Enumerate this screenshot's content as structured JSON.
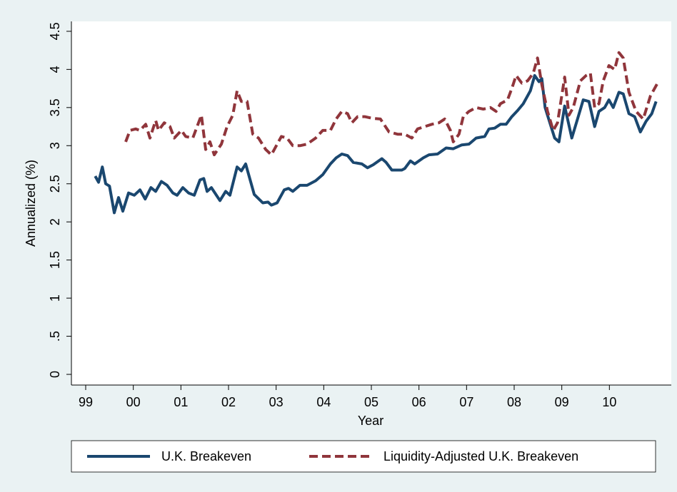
{
  "chart_data": {
    "type": "line",
    "xlabel": "Year",
    "ylabel": "Annualized (%)",
    "xlim": [
      1998.7,
      2011.3
    ],
    "ylim": [
      -0.14,
      4.63
    ],
    "xticks": [
      {
        "value": 1999,
        "label": "99"
      },
      {
        "value": 2000,
        "label": "00"
      },
      {
        "value": 2001,
        "label": "01"
      },
      {
        "value": 2002,
        "label": "02"
      },
      {
        "value": 2003,
        "label": "03"
      },
      {
        "value": 2004,
        "label": "04"
      },
      {
        "value": 2005,
        "label": "05"
      },
      {
        "value": 2006,
        "label": "06"
      },
      {
        "value": 2007,
        "label": "07"
      },
      {
        "value": 2008,
        "label": "08"
      },
      {
        "value": 2009,
        "label": "09"
      },
      {
        "value": 2010,
        "label": "10"
      }
    ],
    "yticks": [
      0,
      {
        "value": 0.5,
        "label": ".5"
      },
      1,
      1.5,
      2,
      2.5,
      3,
      3.5,
      4,
      4.5
    ],
    "legend": "bottom",
    "series": [
      {
        "name": "U.K. Breakeven",
        "color": "#1a476f",
        "dashed": false,
        "x": [
          1999.2,
          1999.27,
          1999.35,
          1999.42,
          1999.5,
          1999.6,
          1999.69,
          1999.78,
          1999.9,
          2000.02,
          2000.14,
          2000.25,
          2000.37,
          2000.47,
          2000.59,
          2000.71,
          2000.83,
          2000.92,
          2001.04,
          2001.16,
          2001.28,
          2001.4,
          2001.48,
          2001.55,
          2001.64,
          2001.82,
          2001.94,
          2002.03,
          2002.18,
          2002.27,
          2002.36,
          2002.54,
          2002.72,
          2002.83,
          2002.9,
          2003.02,
          2003.17,
          2003.26,
          2003.35,
          2003.5,
          2003.65,
          2003.83,
          2003.98,
          2004.14,
          2004.26,
          2004.38,
          2004.5,
          2004.62,
          2004.8,
          2004.92,
          2005.04,
          2005.22,
          2005.31,
          2005.43,
          2005.64,
          2005.7,
          2005.82,
          2005.91,
          2006.09,
          2006.21,
          2006.39,
          2006.57,
          2006.72,
          2006.9,
          2007.05,
          2007.2,
          2007.38,
          2007.47,
          2007.59,
          2007.71,
          2007.83,
          2007.95,
          2008.07,
          2008.19,
          2008.34,
          2008.43,
          2008.52,
          2008.58,
          2008.65,
          2008.85,
          2008.94,
          2009.06,
          2009.21,
          2009.33,
          2009.45,
          2009.57,
          2009.69,
          2009.78,
          2009.9,
          2009.99,
          2010.08,
          2010.2,
          2010.29,
          2010.41,
          2010.53,
          2010.65,
          2010.77,
          2010.89,
          2010.98
        ],
        "values": [
          2.6,
          2.52,
          2.72,
          2.5,
          2.47,
          2.12,
          2.32,
          2.14,
          2.38,
          2.35,
          2.42,
          2.3,
          2.45,
          2.4,
          2.53,
          2.48,
          2.38,
          2.35,
          2.45,
          2.38,
          2.35,
          2.55,
          2.57,
          2.4,
          2.45,
          2.28,
          2.4,
          2.35,
          2.72,
          2.67,
          2.76,
          2.36,
          2.25,
          2.26,
          2.22,
          2.25,
          2.42,
          2.44,
          2.4,
          2.48,
          2.48,
          2.54,
          2.62,
          2.76,
          2.84,
          2.89,
          2.87,
          2.78,
          2.76,
          2.71,
          2.75,
          2.83,
          2.78,
          2.68,
          2.68,
          2.7,
          2.8,
          2.76,
          2.84,
          2.88,
          2.89,
          2.97,
          2.96,
          3.01,
          3.02,
          3.1,
          3.12,
          3.22,
          3.23,
          3.28,
          3.28,
          3.38,
          3.46,
          3.55,
          3.72,
          3.92,
          3.84,
          3.88,
          3.5,
          3.1,
          3.05,
          3.52,
          3.1,
          3.35,
          3.6,
          3.58,
          3.25,
          3.45,
          3.5,
          3.6,
          3.5,
          3.7,
          3.68,
          3.42,
          3.38,
          3.18,
          3.32,
          3.42,
          3.58
        ]
      },
      {
        "name": "Liquidity-Adjusted U.K. Breakeven",
        "color": "#90353b",
        "dashed": true,
        "x": [
          1999.84,
          1999.93,
          2000.05,
          2000.14,
          2000.26,
          2000.35,
          2000.47,
          2000.53,
          2000.65,
          2000.77,
          2000.86,
          2001.01,
          2001.1,
          2001.25,
          2001.43,
          2001.52,
          2001.61,
          2001.7,
          2001.85,
          2001.97,
          2002.09,
          2002.18,
          2002.27,
          2002.39,
          2002.51,
          2002.63,
          2002.78,
          2002.9,
          2003.11,
          2003.23,
          2003.35,
          2003.5,
          2003.65,
          2003.83,
          2003.98,
          2004.14,
          2004.26,
          2004.38,
          2004.5,
          2004.59,
          2004.71,
          2004.86,
          2005.01,
          2005.19,
          2005.37,
          2005.55,
          2005.7,
          2005.85,
          2005.97,
          2006.12,
          2006.27,
          2006.42,
          2006.54,
          2006.66,
          2006.72,
          2006.84,
          2006.93,
          2007.05,
          2007.2,
          2007.35,
          2007.5,
          2007.62,
          2007.71,
          2007.86,
          2007.95,
          2008.04,
          2008.16,
          2008.28,
          2008.4,
          2008.49,
          2008.58,
          2008.7,
          2008.82,
          2008.91,
          2009.06,
          2009.15,
          2009.24,
          2009.39,
          2009.51,
          2009.6,
          2009.69,
          2009.78,
          2009.87,
          2009.99,
          2010.11,
          2010.2,
          2010.29,
          2010.41,
          2010.56,
          2010.71,
          2010.86,
          2011.01
        ],
        "values": [
          3.05,
          3.2,
          3.22,
          3.2,
          3.28,
          3.1,
          3.33,
          3.2,
          3.3,
          3.25,
          3.1,
          3.2,
          3.12,
          3.1,
          3.4,
          2.95,
          3.05,
          2.88,
          3.02,
          3.25,
          3.4,
          3.72,
          3.58,
          3.58,
          3.15,
          3.1,
          2.95,
          2.88,
          3.12,
          3.1,
          3.0,
          3.0,
          3.02,
          3.1,
          3.2,
          3.2,
          3.35,
          3.45,
          3.42,
          3.3,
          3.38,
          3.38,
          3.36,
          3.35,
          3.18,
          3.15,
          3.15,
          3.1,
          3.22,
          3.25,
          3.28,
          3.3,
          3.35,
          3.2,
          3.05,
          3.15,
          3.38,
          3.45,
          3.5,
          3.48,
          3.5,
          3.45,
          3.55,
          3.6,
          3.75,
          3.92,
          3.82,
          3.85,
          3.95,
          4.15,
          3.8,
          3.45,
          3.2,
          3.3,
          3.9,
          3.4,
          3.5,
          3.85,
          3.92,
          3.95,
          3.5,
          3.55,
          3.85,
          4.05,
          4.0,
          4.22,
          4.15,
          3.7,
          3.45,
          3.35,
          3.65,
          3.82
        ]
      }
    ]
  }
}
